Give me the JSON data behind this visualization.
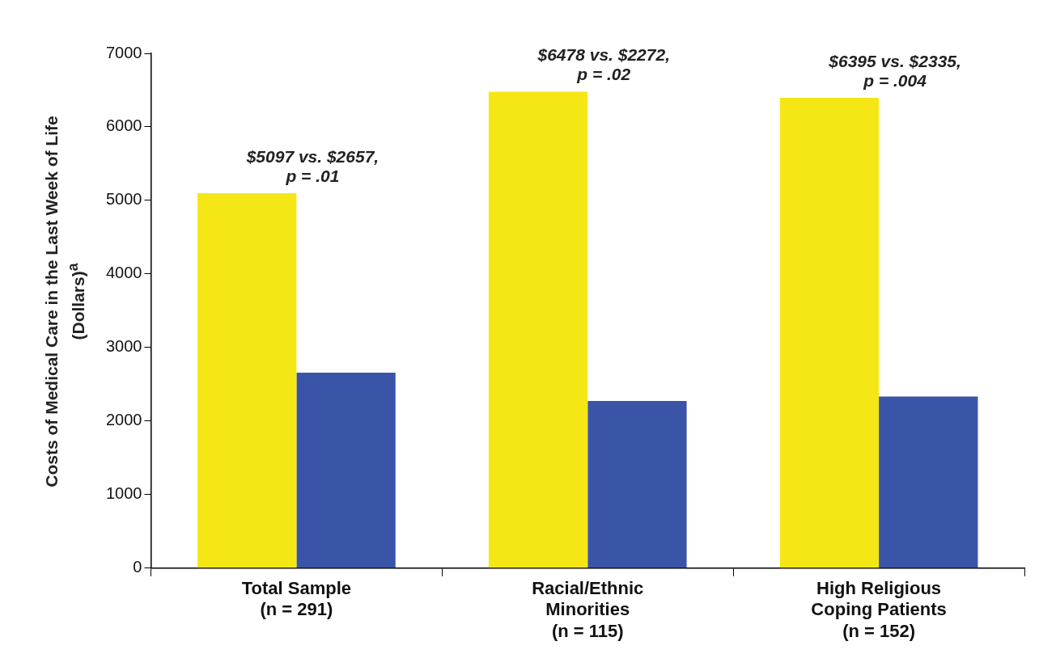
{
  "chart_data": {
    "type": "bar",
    "categories": [
      "Total Sample\n(n = 291)",
      "Racial/Ethnic\nMinorities\n(n = 115)",
      "High Religious\nCoping Patients\n(n = 152)"
    ],
    "series": [
      {
        "color": "#f5e716",
        "values": [
          5097,
          6478,
          6395
        ]
      },
      {
        "color": "#3a55a8",
        "values": [
          2657,
          2272,
          2335
        ]
      }
    ],
    "ylabel": "Costs of Medical Care in the Last Week of Life (Dollars)$^{a}$",
    "ylim": [
      0,
      7000
    ],
    "yticks": [
      0,
      1000,
      2000,
      3000,
      4000,
      5000,
      6000,
      7000
    ],
    "grid": false,
    "legend": false,
    "annotations": [
      {
        "text": "$5097 vs. $2657,\np = .01",
        "x": "Total Sample\n(n = 291)",
        "y": 5097
      },
      {
        "text": "$6478 vs. $2272,\np = .02",
        "x": "Racial/Ethnic\nMinorities\n(n = 115)",
        "y": 6478
      },
      {
        "text": "$6395 vs. $2335,\np = .004",
        "x": "High Religious\nCoping Patients\n(n = 152)",
        "y": 6395
      }
    ]
  }
}
